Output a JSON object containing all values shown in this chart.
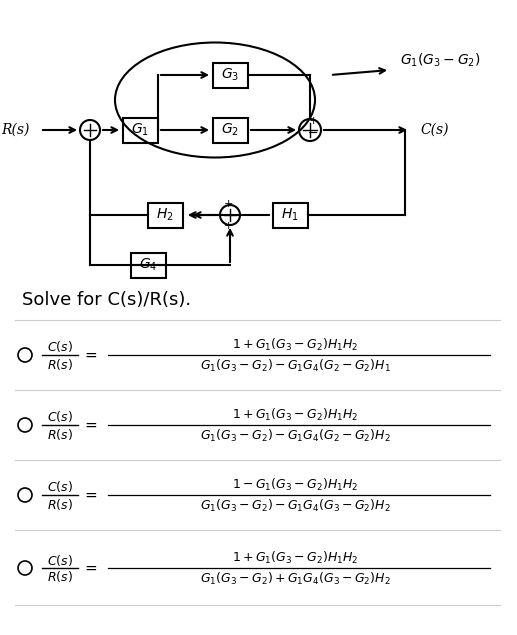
{
  "bg_color": "#ffffff",
  "solve_text": "Solve for C(s)/R(s).",
  "solve_fontsize": 13,
  "options": [
    {
      "numerator": "1+G_{1}(G_{3}-G_{2})H_{1}H_{2}",
      "denominator": "G_{1}(G_{3}-G_{2})-G_{1}G_{4}(G_{2}-G_{2})H_{1}"
    },
    {
      "numerator": "1+G_{1}(G_{3}-G_{2})H_{1}H_{2}",
      "denominator": "G_{1}(G_{3}-G_{2})-G_{1}G_{4}(G_{2}-G_{2})H_{2}"
    },
    {
      "numerator": "1-G_{1}(G_{3}-G_{2})H_{1}H_{2}",
      "denominator": "G_{1}(G_{3}-G_{2})-G_{1}G_{4}(G_{3}-G_{2})H_{2}"
    },
    {
      "numerator": "1+G_{1}(G_{3}-G_{2})H_{1}H_{2}",
      "denominator": "G_{1}(G_{3}-G_{2})+G_{1}G_{4}(G_{3}-G_{2})H_{2}"
    }
  ]
}
